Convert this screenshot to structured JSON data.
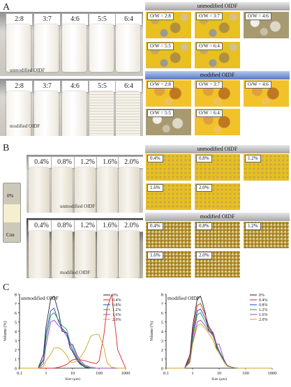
{
  "panel_a": {
    "letter": "A",
    "photo_labels": [
      "2:8",
      "3:7",
      "4:6",
      "5:5",
      "6:4"
    ],
    "unmodified_caption": "unmodified OIDF",
    "modified_caption": "modified OIDF",
    "micro_unmodified_header": "unmodified OIDF",
    "micro_modified_header": "modified OIDF",
    "micro_labels": [
      "O/W = 2:8",
      "O/W = 3:7",
      "O/W = 4:6",
      "O/W = 5:5",
      "O/W = 6:4"
    ]
  },
  "panel_b": {
    "letter": "B",
    "photo_labels": [
      "0.4%",
      "0.8%",
      "1.2%",
      "1.6%",
      "2.0%"
    ],
    "control_top_label": "0%",
    "control_bottom_label": "Con",
    "unmodified_caption": "unmodified OIDF",
    "modified_caption": "modified OIDF",
    "micro_unmodified_header": "unmodified OIDF",
    "micro_modified_header": "modified OIDF",
    "micro_labels": [
      "0.4%",
      "0.8%",
      "1.2%",
      "1.6%",
      "2.0%"
    ]
  },
  "panel_c": {
    "letter": "C",
    "colors": {
      "0%": "#222222",
      "0.4%": "#e02020",
      "0.8%": "#2040d0",
      "1.2%": "#20a040",
      "1.6%": "#a040c0",
      "2.0%": "#d0a020"
    }
  },
  "chart_data": [
    {
      "type": "line",
      "title": "unmodified OIDF",
      "xlabel": "Size (μm)",
      "ylabel": "Volume (%)",
      "xscale": "log",
      "xlim": [
        0.1,
        1000
      ],
      "ylim": [
        0,
        8
      ],
      "x_ticks": [
        "0.1",
        "1",
        "10",
        "100",
        "1000"
      ],
      "y_ticks": [
        "0",
        "1",
        "2",
        "3",
        "4",
        "5",
        "6",
        "7",
        "8"
      ],
      "legend_position": "top-right",
      "x": [
        0.1,
        0.5,
        0.8,
        1,
        1.5,
        2,
        3,
        4,
        6,
        8,
        10,
        15,
        20,
        30,
        50,
        80,
        100,
        150,
        200,
        300,
        500,
        1000
      ],
      "series": [
        {
          "name": "0%",
          "values": [
            0,
            0,
            1.5,
            4.5,
            7.5,
            7.8,
            6.0,
            4.0,
            3.8,
            2.2,
            1.8,
            0.8,
            0.4,
            0.1,
            0,
            0,
            0,
            0,
            0,
            0,
            0,
            0
          ]
        },
        {
          "name": "0.4%",
          "values": [
            0,
            0,
            0,
            0,
            0,
            0,
            0.1,
            0.2,
            0.4,
            0.7,
            0.9,
            1.0,
            0.9,
            0.8,
            0.6,
            0.5,
            0.8,
            3.5,
            6.5,
            8.0,
            2.0,
            0
          ]
        },
        {
          "name": "0.8%",
          "values": [
            0,
            0,
            1.0,
            3.8,
            6.2,
            6.5,
            5.0,
            4.3,
            3.8,
            2.6,
            2.0,
            1.0,
            0.5,
            0.2,
            0,
            0,
            0,
            0,
            0,
            0,
            0,
            0
          ]
        },
        {
          "name": "1.2%",
          "values": [
            0,
            0,
            0.8,
            3.2,
            5.7,
            6.0,
            5.2,
            4.6,
            4.2,
            2.8,
            2.4,
            1.2,
            0.6,
            0.2,
            0,
            0,
            0,
            0,
            0,
            0,
            0,
            0
          ]
        },
        {
          "name": "1.6%",
          "values": [
            0,
            0,
            0.5,
            2.5,
            5.0,
            5.2,
            4.6,
            4.2,
            3.5,
            2.5,
            2.6,
            1.4,
            0.8,
            0.3,
            0.1,
            0,
            0,
            0,
            0,
            0,
            0,
            0
          ]
        },
        {
          "name": "2.0%",
          "values": [
            0,
            0,
            0.2,
            0.8,
            1.5,
            2.2,
            2.2,
            2.0,
            1.4,
            0.7,
            0.6,
            0.8,
            1.2,
            2.0,
            3.5,
            3.7,
            3.6,
            2.3,
            0.6,
            0.1,
            0,
            0
          ]
        }
      ]
    },
    {
      "type": "line",
      "title": "modified OIDF",
      "xlabel": "Size (μm)",
      "ylabel": "Volume (%)",
      "xscale": "log",
      "xlim": [
        0.1,
        1000
      ],
      "ylim": [
        0,
        8
      ],
      "x_ticks": [
        "0.1",
        "1",
        "10",
        "100",
        "1000"
      ],
      "y_ticks": [
        "0",
        "1",
        "2",
        "3",
        "4",
        "5",
        "6",
        "7",
        "8"
      ],
      "legend_position": "top-right",
      "x": [
        0.1,
        0.5,
        0.8,
        1,
        1.5,
        2,
        3,
        4,
        6,
        8,
        10,
        15,
        20,
        30,
        50,
        100,
        1000
      ],
      "series": [
        {
          "name": "0%",
          "values": [
            0,
            0,
            1.5,
            4.5,
            7.5,
            7.8,
            6.0,
            4.0,
            3.8,
            2.2,
            1.8,
            0.8,
            0.3,
            0.1,
            0,
            0,
            0
          ]
        },
        {
          "name": "0.4%",
          "values": [
            0,
            0,
            1.2,
            4.0,
            6.8,
            7.0,
            5.8,
            4.6,
            3.8,
            2.6,
            1.8,
            0.8,
            0.3,
            0.1,
            0,
            0,
            0
          ]
        },
        {
          "name": "0.8%",
          "values": [
            0,
            0,
            1.0,
            3.6,
            6.2,
            6.4,
            5.4,
            4.4,
            3.6,
            2.5,
            1.9,
            0.9,
            0.3,
            0.1,
            0,
            0,
            0
          ]
        },
        {
          "name": "1.2%",
          "values": [
            0,
            0,
            0.8,
            3.2,
            5.8,
            6.0,
            5.0,
            4.2,
            3.4,
            2.4,
            1.8,
            0.8,
            0.3,
            0.1,
            0,
            0,
            0
          ]
        },
        {
          "name": "1.6%",
          "values": [
            0,
            0,
            0.7,
            2.8,
            5.0,
            5.2,
            4.6,
            4.0,
            3.6,
            2.6,
            2.6,
            1.0,
            0.3,
            0.1,
            0,
            0,
            0
          ]
        },
        {
          "name": "2.0%",
          "values": [
            0,
            0,
            0.6,
            2.6,
            4.6,
            4.8,
            4.3,
            3.8,
            3.0,
            2.0,
            1.6,
            0.7,
            0.2,
            0.1,
            0,
            0,
            0
          ]
        }
      ]
    }
  ]
}
